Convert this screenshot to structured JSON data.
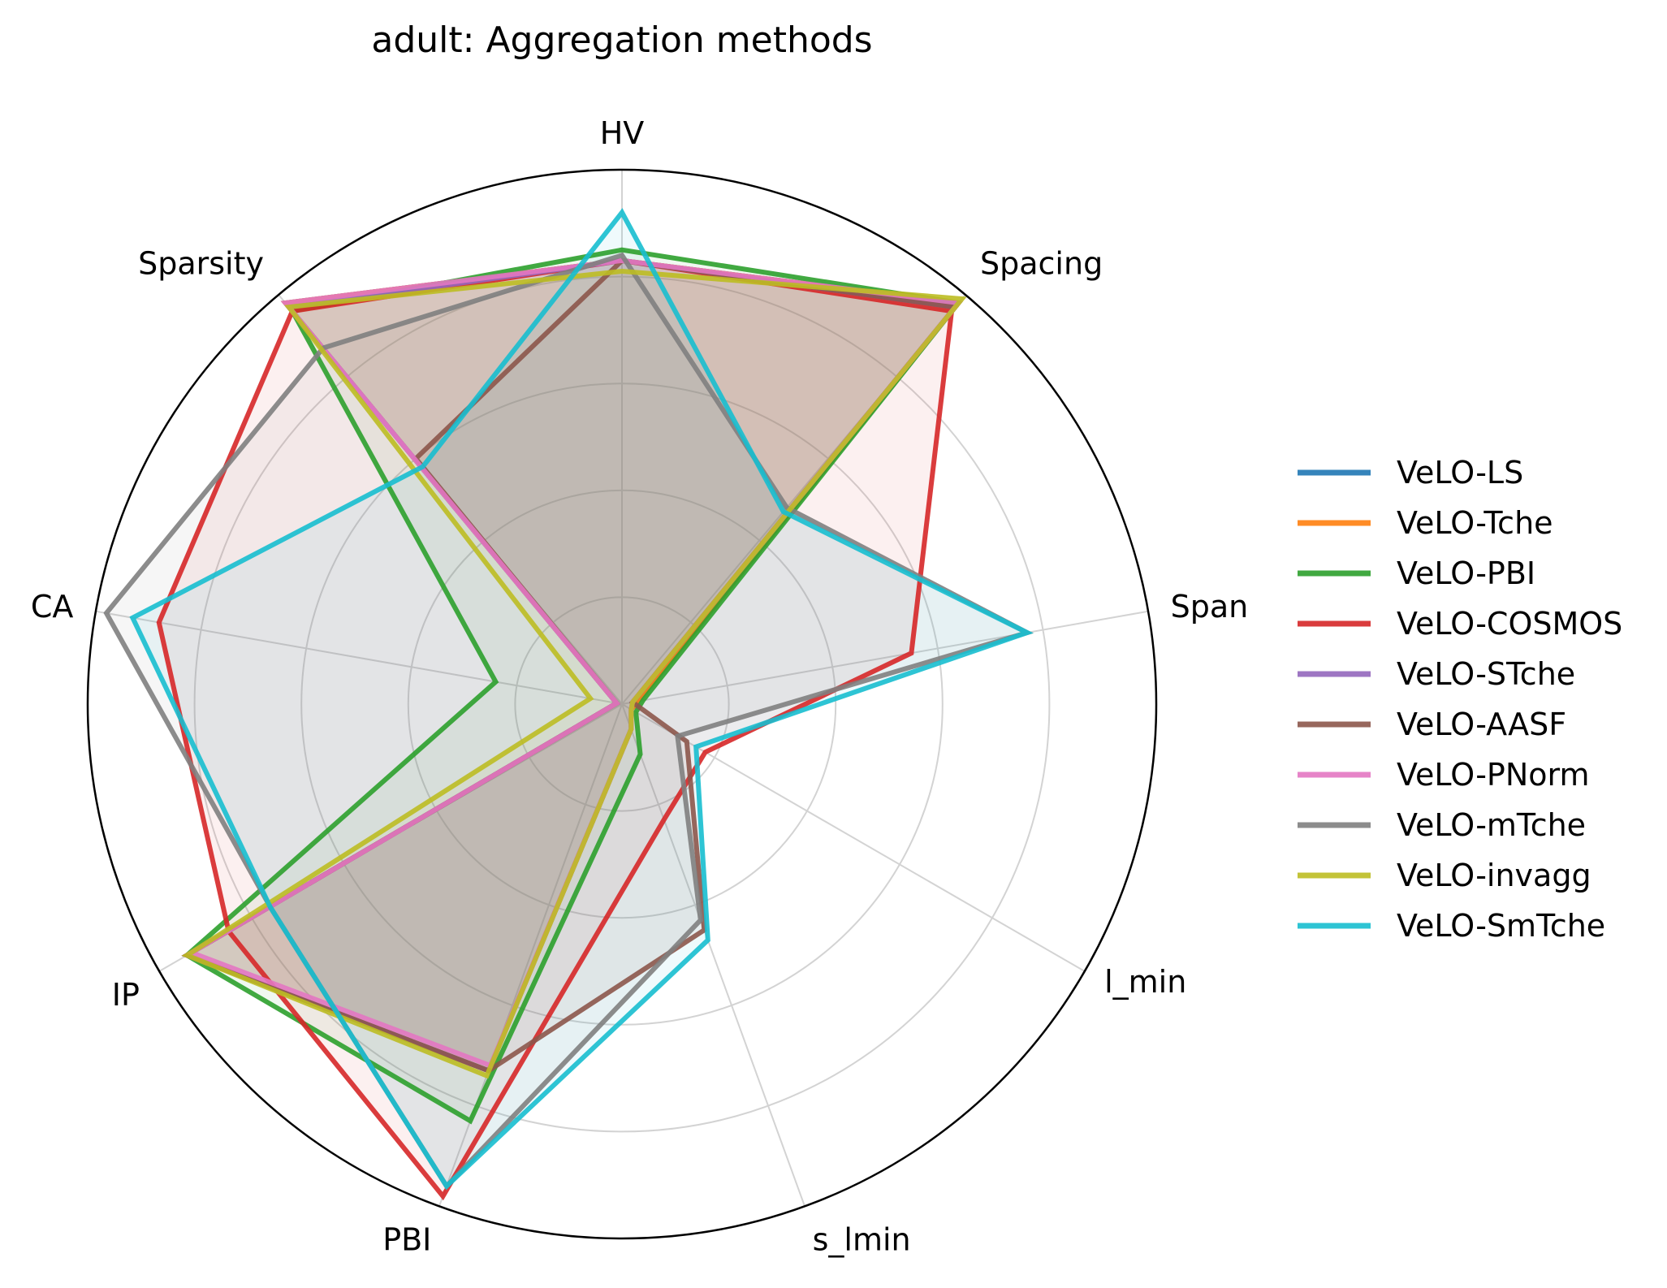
{
  "chart_data": {
    "type": "radar",
    "title": "adult: Aggregation methods",
    "axes": [
      "HV",
      "Spacing",
      "Span",
      "l_min",
      "s_lmin",
      "PBI",
      "IP",
      "CA",
      "Sparsity"
    ],
    "rlim": [
      0,
      1
    ],
    "rings": [
      0.2,
      0.4,
      0.6,
      0.8,
      1.0
    ],
    "grid": true,
    "legend_position": "right",
    "series": [
      {
        "name": "VeLO-LS",
        "color": "#1f77b4",
        "values": [
          0.83,
          0.98,
          0.03,
          0.02,
          0.05,
          0.73,
          0.94,
          0.01,
          0.98
        ]
      },
      {
        "name": "VeLO-Tche",
        "color": "#ff7f0e",
        "values": [
          0.83,
          0.98,
          0.03,
          0.02,
          0.05,
          0.73,
          0.94,
          0.01,
          0.98
        ]
      },
      {
        "name": "VeLO-PBI",
        "color": "#2ca02c",
        "values": [
          0.85,
          0.98,
          0.04,
          0.03,
          0.1,
          0.83,
          0.94,
          0.24,
          0.96
        ]
      },
      {
        "name": "VeLO-COSMOS",
        "color": "#d62728",
        "values": [
          0.83,
          0.96,
          0.55,
          0.18,
          0.23,
          0.98,
          0.85,
          0.88,
          0.96
        ]
      },
      {
        "name": "VeLO-STche",
        "color": "#9467bd",
        "values": [
          0.83,
          0.97,
          0.02,
          0.02,
          0.05,
          0.73,
          0.94,
          0.01,
          0.97
        ]
      },
      {
        "name": "VeLO-AASF",
        "color": "#8c564b",
        "values": [
          0.83,
          0.97,
          0.02,
          0.14,
          0.45,
          0.73,
          0.94,
          0.01,
          0.6
        ]
      },
      {
        "name": "VeLO-PNorm",
        "color": "#e377c2",
        "values": [
          0.83,
          0.98,
          0.02,
          0.02,
          0.05,
          0.72,
          0.93,
          0.01,
          0.98
        ]
      },
      {
        "name": "VeLO-mTche",
        "color": "#7f7f7f",
        "values": [
          0.84,
          0.48,
          0.77,
          0.12,
          0.43,
          0.96,
          0.76,
          0.98,
          0.87
        ]
      },
      {
        "name": "VeLO-invagg",
        "color": "#bcbd22",
        "values": [
          0.81,
          0.99,
          0.02,
          0.02,
          0.05,
          0.74,
          0.94,
          0.06,
          0.97
        ]
      },
      {
        "name": "VeLO-SmTche",
        "color": "#17becf",
        "values": [
          0.92,
          0.47,
          0.77,
          0.16,
          0.47,
          0.96,
          0.76,
          0.93,
          0.58
        ]
      }
    ]
  }
}
